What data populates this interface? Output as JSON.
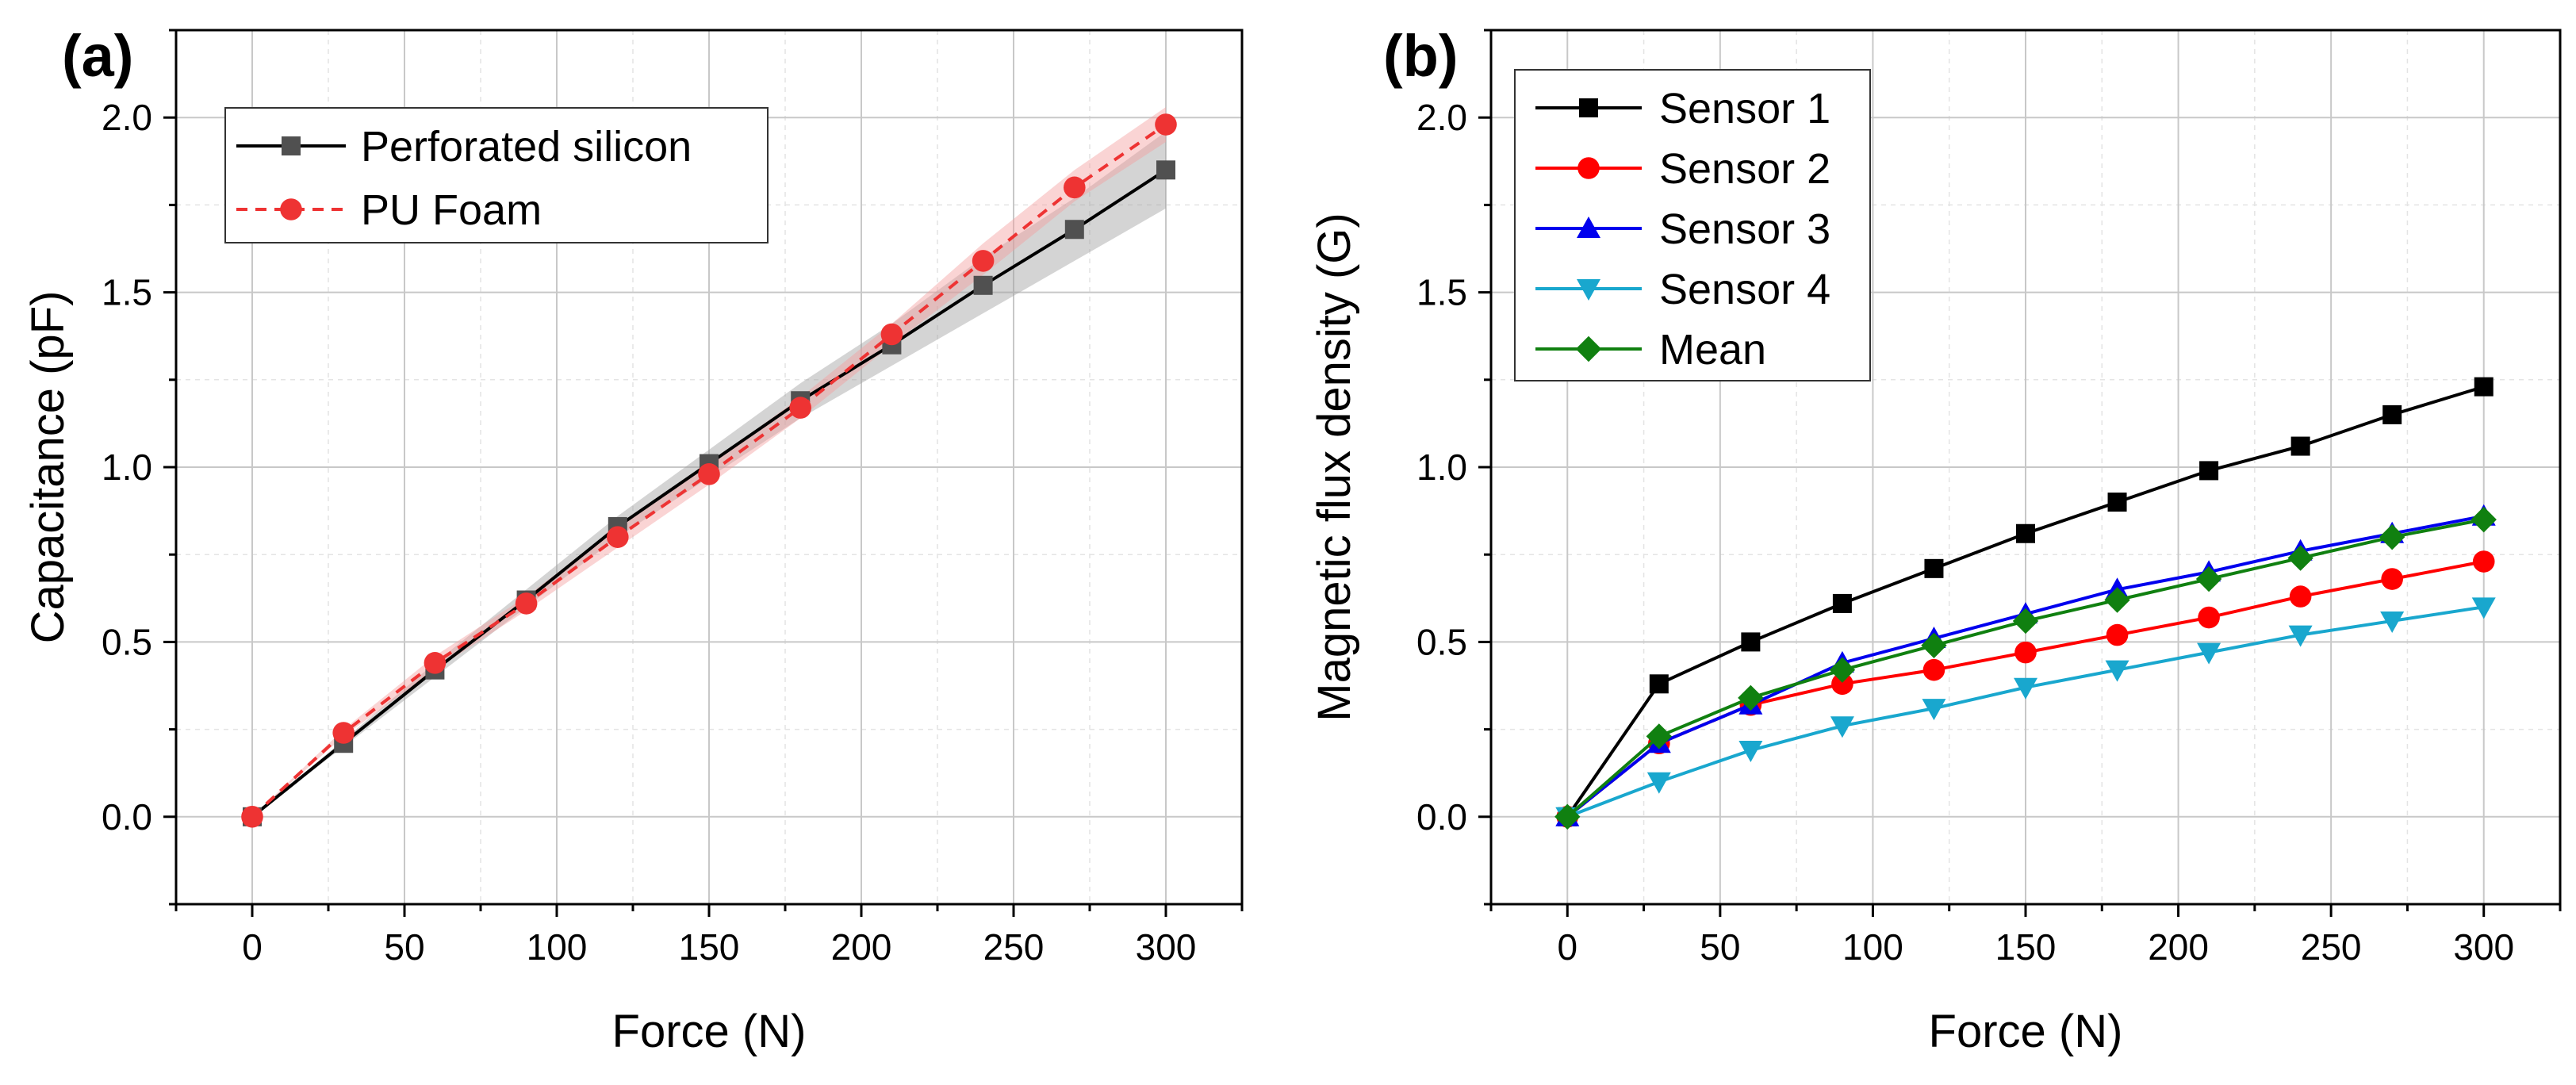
{
  "chart_data": [
    {
      "panel": "(a)",
      "type": "line",
      "xlabel": "Force (N)",
      "ylabel": "Capacitance (pF)",
      "xlim": [
        -25,
        325
      ],
      "ylim": [
        -0.25,
        2.25
      ],
      "xticks": [
        0,
        50,
        100,
        150,
        200,
        250,
        300
      ],
      "yticks": [
        0.0,
        0.5,
        1.0,
        1.5,
        2.0
      ],
      "xtick_labels": [
        "0",
        "50",
        "100",
        "150",
        "200",
        "250",
        "300"
      ],
      "ytick_labels": [
        "0.0",
        "0.5",
        "1.0",
        "1.5",
        "2.0"
      ],
      "grid": true,
      "legend_position": "top-left",
      "x": [
        0,
        30,
        60,
        90,
        120,
        150,
        180,
        210,
        240,
        270,
        300
      ],
      "series": [
        {
          "name": "Perforated silicon",
          "color": "#000000",
          "marker_color": "#505050",
          "marker": "square",
          "line_style": "solid",
          "band_color": "#a0a0a0",
          "values": [
            0.0,
            0.21,
            0.42,
            0.62,
            0.83,
            1.01,
            1.19,
            1.35,
            1.52,
            1.68,
            1.85
          ],
          "lower": [
            0.0,
            0.2,
            0.4,
            0.6,
            0.8,
            0.97,
            1.14,
            1.29,
            1.44,
            1.59,
            1.74
          ],
          "upper": [
            0.0,
            0.22,
            0.44,
            0.65,
            0.86,
            1.05,
            1.24,
            1.41,
            1.6,
            1.77,
            1.96
          ]
        },
        {
          "name": "PU Foam",
          "color": "#ee3333",
          "marker_color": "#ee3333",
          "marker": "circle",
          "line_style": "dashed",
          "band_color": "#f4a0a0",
          "values": [
            0.0,
            0.24,
            0.44,
            0.61,
            0.8,
            0.98,
            1.17,
            1.38,
            1.59,
            1.8,
            1.98
          ],
          "lower": [
            0.0,
            0.23,
            0.42,
            0.59,
            0.77,
            0.95,
            1.14,
            1.35,
            1.55,
            1.76,
            1.93
          ],
          "upper": [
            0.0,
            0.25,
            0.46,
            0.63,
            0.83,
            1.01,
            1.2,
            1.41,
            1.64,
            1.85,
            2.03
          ]
        }
      ]
    },
    {
      "panel": "(b)",
      "type": "line",
      "xlabel": "Force (N)",
      "ylabel": "Magnetic flux density (G)",
      "xlim": [
        -25,
        325
      ],
      "ylim": [
        -0.25,
        2.25
      ],
      "xticks": [
        0,
        50,
        100,
        150,
        200,
        250,
        300
      ],
      "yticks": [
        0.0,
        0.5,
        1.0,
        1.5,
        2.0
      ],
      "xtick_labels": [
        "0",
        "50",
        "100",
        "150",
        "200",
        "250",
        "300"
      ],
      "ytick_labels": [
        "0.0",
        "0.5",
        "1.0",
        "1.5",
        "2.0"
      ],
      "grid": true,
      "legend_position": "top-left",
      "x": [
        0,
        30,
        60,
        90,
        120,
        150,
        180,
        210,
        240,
        270,
        300
      ],
      "series": [
        {
          "name": "Sensor 1",
          "color": "#000000",
          "marker": "square",
          "values": [
            0.0,
            0.38,
            0.5,
            0.61,
            0.71,
            0.81,
            0.9,
            0.99,
            1.06,
            1.15,
            1.23
          ]
        },
        {
          "name": "Sensor 2",
          "color": "#ff0000",
          "marker": "circle",
          "values": [
            0.0,
            0.21,
            0.32,
            0.38,
            0.42,
            0.47,
            0.52,
            0.57,
            0.63,
            0.68,
            0.73
          ]
        },
        {
          "name": "Sensor 3",
          "color": "#0000ee",
          "marker": "triangle-up",
          "values": [
            0.0,
            0.21,
            0.32,
            0.44,
            0.51,
            0.58,
            0.65,
            0.7,
            0.76,
            0.81,
            0.86
          ]
        },
        {
          "name": "Sensor 4",
          "color": "#19a7ce",
          "marker": "triangle-down",
          "values": [
            0.0,
            0.1,
            0.19,
            0.26,
            0.31,
            0.37,
            0.42,
            0.47,
            0.52,
            0.56,
            0.6
          ]
        },
        {
          "name": "Mean",
          "color": "#108010",
          "marker": "diamond",
          "values": [
            0.0,
            0.23,
            0.34,
            0.42,
            0.49,
            0.56,
            0.62,
            0.68,
            0.74,
            0.8,
            0.85
          ]
        }
      ]
    }
  ]
}
